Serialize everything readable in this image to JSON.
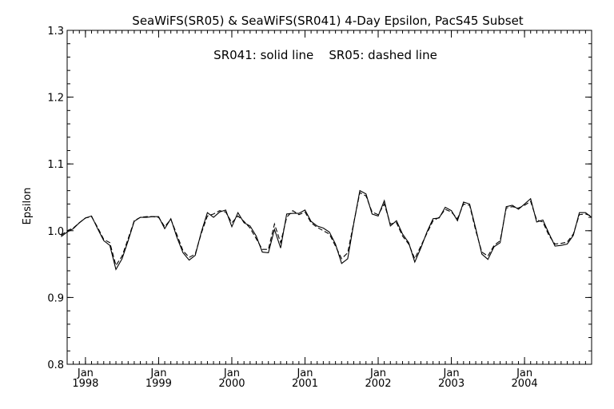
{
  "chart_data": {
    "type": "line",
    "title": "SeaWiFS(SR05) & SeaWiFS(SR041) 4-Day Epsilon, PacS45 Subset",
    "annotation": "SR041: solid line    SR05: dashed line",
    "xlabel": "",
    "ylabel": "Epsilon",
    "xlim": [
      "1997-10",
      "2004-12"
    ],
    "ylim": [
      0.8,
      1.3
    ],
    "yticks": [
      "0.8",
      "0.9",
      "1.0",
      "1.1",
      "1.2",
      "1.3"
    ],
    "xticks": [
      {
        "month": "Jan",
        "year": "1998"
      },
      {
        "month": "Jan",
        "year": "1999"
      },
      {
        "month": "Jan",
        "year": "2000"
      },
      {
        "month": "Jan",
        "year": "2001"
      },
      {
        "month": "Jan",
        "year": "2002"
      },
      {
        "month": "Jan",
        "year": "2003"
      },
      {
        "month": "Jan",
        "year": "2004"
      }
    ],
    "grid": false,
    "x": [
      "1997-09",
      "1997-10",
      "1997-11",
      "1997-12",
      "1998-01",
      "1998-02",
      "1998-03",
      "1998-04",
      "1998-05",
      "1998-06",
      "1998-07",
      "1998-08",
      "1998-09",
      "1998-10",
      "1998-11",
      "1998-12",
      "1999-01",
      "1999-02",
      "1999-03",
      "1999-04",
      "1999-05",
      "1999-06",
      "1999-07",
      "1999-08",
      "1999-09",
      "1999-10",
      "1999-11",
      "1999-12",
      "2000-01",
      "2000-02",
      "2000-03",
      "2000-04",
      "2000-05",
      "2000-06",
      "2000-07",
      "2000-08",
      "2000-09",
      "2000-10",
      "2000-11",
      "2000-12",
      "2001-01",
      "2001-02",
      "2001-03",
      "2001-04",
      "2001-05",
      "2001-06",
      "2001-07",
      "2001-08",
      "2001-09",
      "2001-10",
      "2001-11",
      "2001-12",
      "2002-01",
      "2002-02",
      "2002-03",
      "2002-04",
      "2002-05",
      "2002-06",
      "2002-07",
      "2002-08",
      "2002-09",
      "2002-10",
      "2002-11",
      "2002-12",
      "2003-01",
      "2003-02",
      "2003-03",
      "2003-04",
      "2003-05",
      "2003-06",
      "2003-07",
      "2003-08",
      "2003-09",
      "2003-10",
      "2003-11",
      "2003-12",
      "2004-01",
      "2004-02",
      "2004-03",
      "2004-04",
      "2004-05",
      "2004-06",
      "2004-07",
      "2004-08",
      "2004-09",
      "2004-10",
      "2004-11",
      "2004-12"
    ],
    "series": [
      {
        "name": "SR041",
        "style": "solid",
        "values": [
          0.991,
          0.998,
          1.003,
          1.012,
          1.019,
          1.022,
          1.003,
          0.985,
          0.978,
          0.942,
          0.958,
          0.985,
          1.014,
          1.02,
          1.02,
          1.021,
          1.021,
          1.003,
          1.018,
          0.99,
          0.967,
          0.956,
          0.963,
          0.998,
          1.027,
          1.02,
          1.028,
          1.031,
          1.006,
          1.027,
          1.012,
          1.007,
          0.992,
          0.968,
          0.967,
          1.002,
          0.974,
          1.025,
          1.026,
          1.026,
          1.031,
          1.014,
          1.007,
          1.004,
          0.998,
          0.98,
          0.951,
          0.958,
          1.011,
          1.06,
          1.055,
          1.025,
          1.022,
          1.045,
          1.007,
          1.015,
          0.995,
          0.982,
          0.953,
          0.974,
          0.998,
          1.018,
          1.019,
          1.035,
          1.03,
          1.015,
          1.043,
          1.04,
          1.003,
          0.965,
          0.957,
          0.976,
          0.982,
          1.036,
          1.038,
          1.032,
          1.04,
          1.048,
          1.013,
          1.016,
          0.996,
          0.977,
          0.978,
          0.98,
          0.993,
          1.027,
          1.027,
          1.02
        ]
      },
      {
        "name": "SR05",
        "style": "dashed",
        "values": [
          0.993,
          1.0,
          1.004,
          1.012,
          1.019,
          1.021,
          1.005,
          0.987,
          0.982,
          0.948,
          0.962,
          0.988,
          1.015,
          1.02,
          1.021,
          1.021,
          1.02,
          1.006,
          1.017,
          0.994,
          0.97,
          0.96,
          0.965,
          0.996,
          1.022,
          1.025,
          1.03,
          1.028,
          1.012,
          1.022,
          1.014,
          1.004,
          0.988,
          0.972,
          0.972,
          1.01,
          0.982,
          1.02,
          1.03,
          1.024,
          1.028,
          1.012,
          1.005,
          1.0,
          0.995,
          0.977,
          0.958,
          0.967,
          1.012,
          1.057,
          1.052,
          1.028,
          1.024,
          1.04,
          1.01,
          1.012,
          0.992,
          0.98,
          0.958,
          0.977,
          0.996,
          1.015,
          1.02,
          1.032,
          1.028,
          1.018,
          1.04,
          1.038,
          1.0,
          0.968,
          0.962,
          0.978,
          0.985,
          1.034,
          1.036,
          1.034,
          1.038,
          1.044,
          1.016,
          1.013,
          0.993,
          0.98,
          0.981,
          0.983,
          0.995,
          1.024,
          1.025,
          1.022
        ]
      }
    ]
  }
}
